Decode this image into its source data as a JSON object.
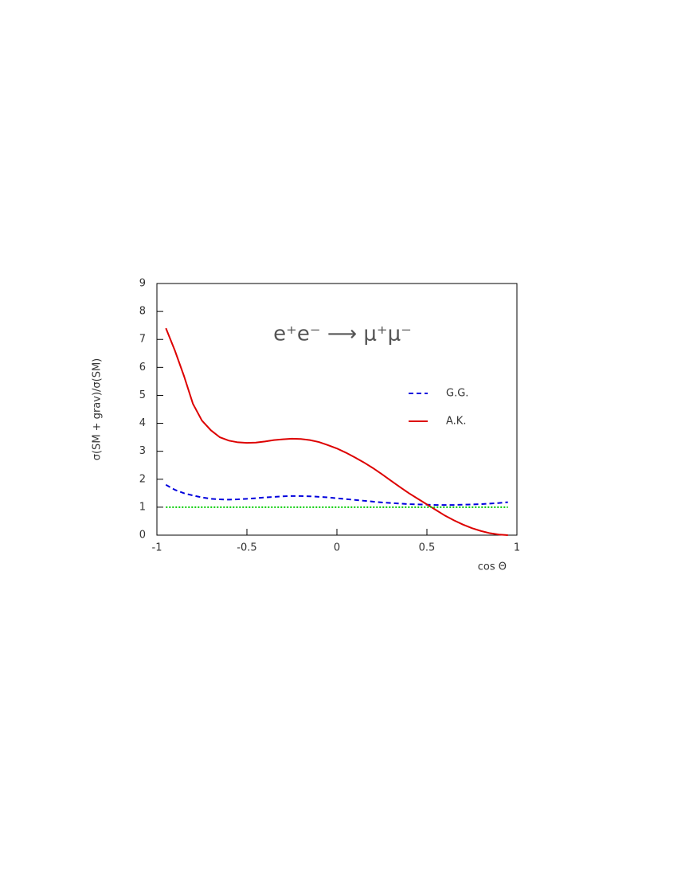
{
  "chart_data": {
    "type": "line",
    "annotation": "e⁺e⁻  ⟶  μ⁺μ⁻",
    "y_label": "σ(SM + grav)/σ(SM)",
    "x_label": "cos Θ",
    "xlim": [
      -1,
      1
    ],
    "ylim": [
      0,
      9
    ],
    "xticks": [
      -1,
      -0.5,
      0,
      0.5,
      1
    ],
    "yticks": [
      0,
      1,
      2,
      3,
      4,
      5,
      6,
      7,
      8,
      9
    ],
    "x": [
      -0.95,
      -0.9,
      -0.85,
      -0.8,
      -0.75,
      -0.7,
      -0.65,
      -0.6,
      -0.55,
      -0.5,
      -0.45,
      -0.4,
      -0.35,
      -0.3,
      -0.25,
      -0.2,
      -0.15,
      -0.1,
      -0.05,
      0,
      0.05,
      0.1,
      0.15,
      0.2,
      0.25,
      0.3,
      0.35,
      0.4,
      0.45,
      0.5,
      0.55,
      0.6,
      0.65,
      0.7,
      0.75,
      0.8,
      0.85,
      0.9,
      0.95
    ],
    "series": [
      {
        "name": "G.G.",
        "color": "#0000dd",
        "style": "dashed",
        "values": [
          1.8,
          1.62,
          1.5,
          1.42,
          1.35,
          1.3,
          1.28,
          1.27,
          1.28,
          1.3,
          1.32,
          1.35,
          1.37,
          1.39,
          1.4,
          1.4,
          1.39,
          1.37,
          1.35,
          1.32,
          1.29,
          1.26,
          1.23,
          1.2,
          1.17,
          1.15,
          1.13,
          1.11,
          1.1,
          1.09,
          1.08,
          1.08,
          1.08,
          1.09,
          1.1,
          1.11,
          1.13,
          1.15,
          1.18
        ]
      },
      {
        "name": "A.K.",
        "color": "#dd0000",
        "style": "solid",
        "values": [
          7.4,
          6.6,
          5.7,
          4.7,
          4.1,
          3.75,
          3.5,
          3.38,
          3.32,
          3.3,
          3.31,
          3.35,
          3.4,
          3.43,
          3.45,
          3.44,
          3.4,
          3.33,
          3.22,
          3.1,
          2.95,
          2.78,
          2.6,
          2.4,
          2.18,
          1.95,
          1.72,
          1.5,
          1.3,
          1.1,
          0.9,
          0.7,
          0.53,
          0.38,
          0.25,
          0.15,
          0.07,
          0.02,
          0.0
        ]
      },
      {
        "color": "#00cc00",
        "style": "dotted",
        "values": [
          1,
          1,
          1,
          1,
          1,
          1,
          1,
          1,
          1,
          1,
          1,
          1,
          1,
          1,
          1,
          1,
          1,
          1,
          1,
          1,
          1,
          1,
          1,
          1,
          1,
          1,
          1,
          1,
          1,
          1,
          1,
          1,
          1,
          1,
          1,
          1,
          1,
          1,
          1
        ]
      }
    ]
  }
}
